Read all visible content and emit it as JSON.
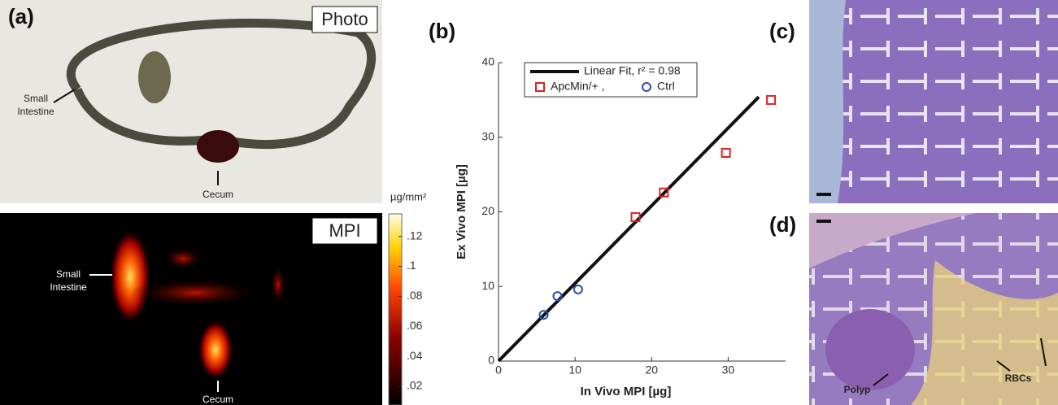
{
  "panels": {
    "a": "(a)",
    "b": "(b)",
    "c": "(c)",
    "d": "(d)"
  },
  "photo": {
    "tag": "Photo",
    "small_intestine": [
      "Small",
      "Intestine"
    ],
    "cecum": "Cecum"
  },
  "mpi": {
    "tag": "MPI",
    "small_intestine": [
      "Small",
      "Intestine"
    ],
    "cecum": "Cecum"
  },
  "colorbar": {
    "unit": "µg/mm²",
    "clim": [
      0.0075,
      0.135
    ],
    "ticks": [
      {
        "value": 0.12,
        "label": ".12"
      },
      {
        "value": 0.1,
        "label": ".1"
      },
      {
        "value": 0.08,
        "label": ".08"
      },
      {
        "value": 0.06,
        "label": ".06"
      },
      {
        "value": 0.04,
        "label": ".04"
      },
      {
        "value": 0.02,
        "label": ".02"
      }
    ]
  },
  "histology": {
    "polyp": "Polyp",
    "rbcs": "RBCs"
  },
  "chart_data": {
    "type": "scatter",
    "x_label": "In Vivo MPI [µg]",
    "y_label": "Ex Vivo MPI [µg]",
    "xlim": [
      0,
      37.5
    ],
    "ylim": [
      0,
      40
    ],
    "xticks": [
      0,
      10,
      20,
      30
    ],
    "yticks": [
      0,
      10,
      20,
      30,
      40
    ],
    "series": [
      {
        "name": "Linear Fit, r² = 0.98",
        "color": "#111111",
        "marker": "line",
        "x": [
          0,
          34
        ],
        "values": [
          0,
          35.4
        ]
      },
      {
        "name": "ApcMin/+ ,",
        "color": "#e02020",
        "marker": "square",
        "x": [
          17.9,
          21.6,
          29.7,
          35.6
        ],
        "values": [
          19.3,
          22.6,
          27.9,
          35.0
        ]
      },
      {
        "name": "Ctrl",
        "color": "#2a4fa8",
        "marker": "circle",
        "x": [
          5.9,
          7.7,
          10.4
        ],
        "values": [
          6.2,
          8.7,
          9.6
        ]
      }
    ]
  }
}
